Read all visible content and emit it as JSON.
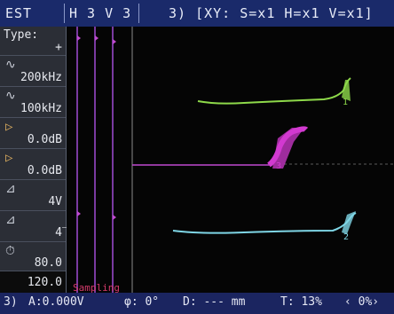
{
  "topbar": {
    "label_est": "EST",
    "label_h3v3": "H 3 V 3",
    "label_xy": "3) [XY: S=x1 H=x1 V=x1]"
  },
  "sidebar": {
    "type_label": "Type:",
    "type_value": "+",
    "freq_high": "200kHz",
    "freq_low": "100kHz",
    "gain_1": "0.0dB",
    "gain_2": "0.0dB",
    "level_1": "4V",
    "level_2": "4̅",
    "timer_value": "80.0",
    "bottom_value": "120.0"
  },
  "plot": {
    "marker_green": "1",
    "marker_magenta": "3",
    "marker_cyan": "2",
    "red_label": "Sampling"
  },
  "bottombar": {
    "channel": "3)",
    "amp": "A:0.000V",
    "phase": "φ:   0°",
    "d": "D: --- mm",
    "t": "T: 13%",
    "pct": "‹ 0%›"
  },
  "colors": {
    "green": "#8ed94a",
    "magenta": "#d23ad0",
    "cyan": "#7fd6e6",
    "topbar": "#1a2a6a",
    "sidebar": "#2b2e36"
  }
}
